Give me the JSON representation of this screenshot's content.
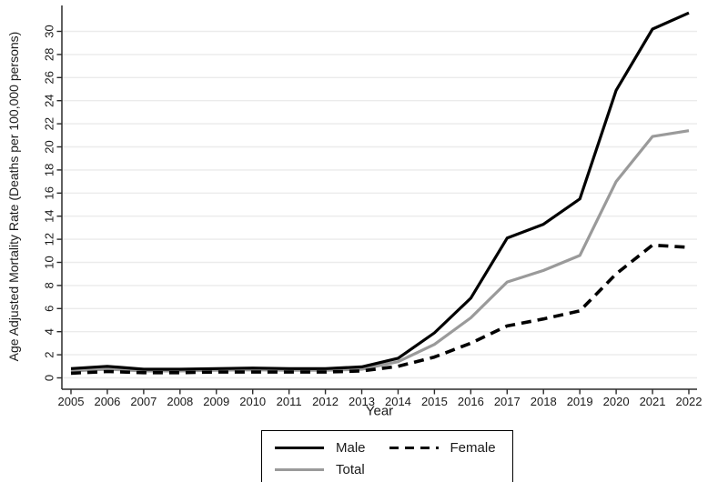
{
  "chart_data": {
    "type": "line",
    "title": "",
    "xlabel": "Year",
    "ylabel": "Age Adjusted Mortality Rate (Deaths per 100,000 persons)",
    "x": [
      2005,
      2006,
      2007,
      2008,
      2009,
      2010,
      2011,
      2012,
      2013,
      2014,
      2015,
      2016,
      2017,
      2018,
      2019,
      2020,
      2021,
      2022
    ],
    "yticks": [
      0,
      2,
      4,
      6,
      8,
      10,
      12,
      14,
      16,
      18,
      20,
      22,
      24,
      26,
      28,
      30
    ],
    "ylim": [
      0,
      32
    ],
    "grid": "horizontal",
    "legend_position": "bottom-center-boxed",
    "series": [
      {
        "name": "Male",
        "color": "#000000",
        "dash": null,
        "width": 3.2,
        "values": [
          0.8,
          1.0,
          0.75,
          0.75,
          0.8,
          0.85,
          0.8,
          0.8,
          0.95,
          1.7,
          3.9,
          6.9,
          12.1,
          13.3,
          15.5,
          24.9,
          30.2,
          31.6
        ]
      },
      {
        "name": "Female",
        "color": "#000000",
        "dash": [
          11,
          7
        ],
        "width": 3.6,
        "values": [
          0.4,
          0.55,
          0.45,
          0.45,
          0.5,
          0.5,
          0.5,
          0.5,
          0.6,
          1.0,
          1.8,
          3.0,
          4.5,
          5.1,
          5.8,
          9.0,
          11.5,
          11.3
        ]
      },
      {
        "name": "Total",
        "color": "#9a9a9a",
        "dash": null,
        "width": 3.2,
        "values": [
          0.6,
          0.75,
          0.6,
          0.6,
          0.65,
          0.7,
          0.65,
          0.65,
          0.75,
          1.4,
          2.9,
          5.2,
          8.3,
          9.3,
          10.6,
          17.0,
          20.9,
          21.4
        ]
      }
    ]
  },
  "colors": {
    "background": "#ffffff",
    "gridline": "#ebebeb",
    "axis": "#2b2b2b",
    "text": "#1a1a1a"
  }
}
